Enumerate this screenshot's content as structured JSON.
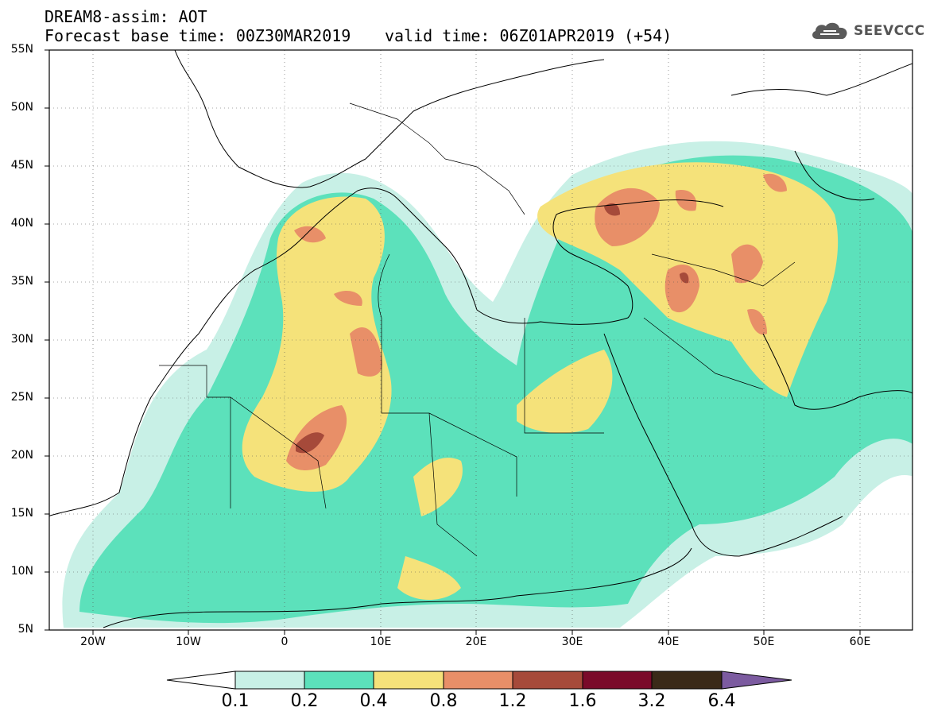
{
  "header": {
    "title_line1": "DREAM8-assim: AOT",
    "title_line2": "Forecast base time: 00Z30MAR2019",
    "valid_time": "valid time: 06Z01APR2019 (+54)"
  },
  "logo": {
    "text": "SEEVCCC",
    "icon": "cloud-icon"
  },
  "map": {
    "lat_labels": [
      "55N",
      "50N",
      "45N",
      "40N",
      "35N",
      "30N",
      "25N",
      "20N",
      "15N",
      "10N",
      "5N"
    ],
    "lon_labels": [
      "20W",
      "10W",
      "0",
      "10E",
      "20E",
      "30E",
      "40E",
      "50E",
      "60E"
    ],
    "lat_range": [
      5,
      55
    ],
    "lon_range": [
      -25,
      65
    ],
    "grid": true
  },
  "colorbar": {
    "levels": [
      "0.1",
      "0.2",
      "0.4",
      "0.8",
      "1.2",
      "1.6",
      "3.2",
      "6.4"
    ],
    "colors": [
      "#ffffff",
      "#c8f0e6",
      "#5ce1bb",
      "#f5e27a",
      "#e88f68",
      "#a64a3a",
      "#7a0a2a",
      "#3a2a18",
      "#7c5ba0"
    ]
  }
}
